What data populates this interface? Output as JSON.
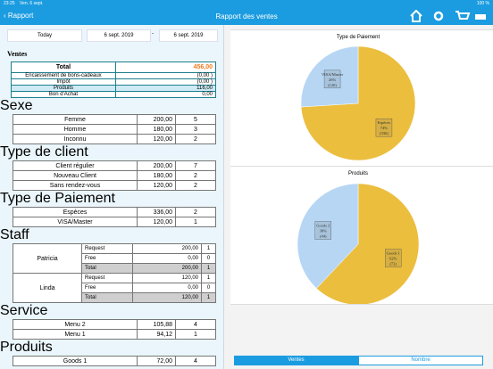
{
  "status_bar": {
    "time": "23:25",
    "date": "Ven. 6 sept.",
    "battery": "100 %"
  },
  "nav": {
    "back": "Rapport",
    "title": "Rapport des ventes"
  },
  "filters": {
    "preset": "Today",
    "from": "6 sept. 2019",
    "separator": "-",
    "to": "6 sept. 2019"
  },
  "ventes": {
    "heading": "Ventes",
    "rows": [
      [
        "Total",
        "456,00"
      ],
      [
        "Encaissement de bons-cadeaux",
        "(0,00 )"
      ],
      [
        "Impôt",
        "(0,00 )"
      ],
      [
        "Produits",
        "116,00"
      ],
      [
        "Bon d'Achat",
        "0,00"
      ]
    ]
  },
  "sections": [
    {
      "title": "Sexe",
      "rows": [
        [
          "Femme",
          "200,00",
          "5"
        ],
        [
          "Homme",
          "180,00",
          "3"
        ],
        [
          "Inconnu",
          "120,00",
          "2"
        ]
      ]
    },
    {
      "title": "Type de client",
      "rows": [
        [
          "Client régulier",
          "200,00",
          "7"
        ],
        [
          "Nouveau Client",
          "180,00",
          "2"
        ],
        [
          "Sans rendez-vous",
          "120,00",
          "2"
        ]
      ]
    },
    {
      "title": "Type de Paiement",
      "rows": [
        [
          "Espèces",
          "336,00",
          "2"
        ],
        [
          "VISA/Master",
          "120,00",
          "1"
        ]
      ]
    },
    {
      "title": "Staff",
      "people": [
        {
          "name": "Patricia",
          "rows": [
            [
              "Request",
              "200,00",
              "1"
            ],
            [
              "Free",
              "0,00",
              "0"
            ],
            [
              "Total",
              "200,00",
              "1"
            ]
          ]
        },
        {
          "name": "Linda",
          "rows": [
            [
              "Request",
              "120,00",
              "1"
            ],
            [
              "Free",
              "0,00",
              "0"
            ],
            [
              "Total",
              "120,00",
              "1"
            ]
          ]
        }
      ]
    },
    {
      "title": "Service",
      "rows": [
        [
          "Menu 2",
          "105,88",
          "4"
        ],
        [
          "Menu 1",
          "94,12",
          "1"
        ]
      ]
    },
    {
      "title": "Produits",
      "rows": [
        [
          "Goods 1",
          "72,00",
          "4"
        ]
      ]
    }
  ],
  "chart_data": [
    {
      "type": "pie",
      "title": "Type de Paiement",
      "categories": [
        "Espèces",
        "VISA/Master"
      ],
      "values": [
        74,
        26
      ],
      "value_labels": [
        "74%",
        "26%"
      ],
      "amount_labels": [
        "(336)",
        "(120)"
      ],
      "colors": [
        "#ecbe3e",
        "#b6d6f4"
      ]
    },
    {
      "type": "pie",
      "title": "Produits",
      "categories": [
        "Goods 1",
        "Goods 2"
      ],
      "values": [
        62,
        38
      ],
      "value_labels": [
        "62%",
        "38%"
      ],
      "amount_labels": [
        "(72)",
        "(44)"
      ],
      "colors": [
        "#ecbe3e",
        "#b6d6f4"
      ]
    }
  ],
  "tabs": [
    "Ventes",
    "Nombre"
  ]
}
